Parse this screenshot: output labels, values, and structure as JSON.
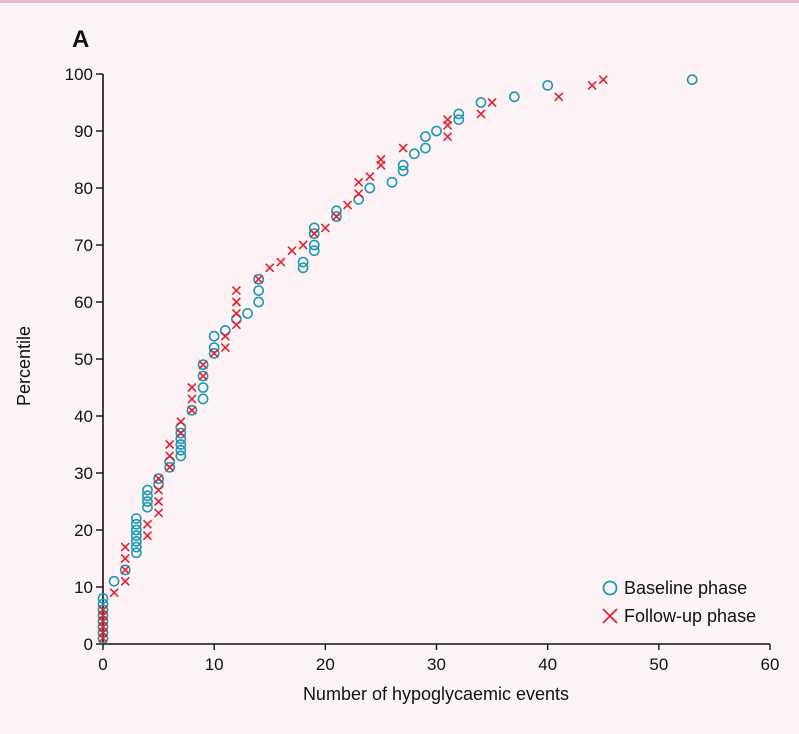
{
  "panel_label": "A",
  "colors": {
    "baseline": "#1a9bb5",
    "followup": "#e0242e",
    "axis": "#111111",
    "background": "#fdf2f5"
  },
  "chart_data": {
    "type": "scatter",
    "title": "",
    "xlabel": "Number of hypoglycaemic events",
    "ylabel": "Percentile",
    "xlim": [
      0,
      60
    ],
    "ylim": [
      0,
      100
    ],
    "xticks": [
      "0",
      "10",
      "20",
      "30",
      "40",
      "50",
      "60"
    ],
    "yticks": [
      "0",
      "10",
      "20",
      "30",
      "40",
      "50",
      "60",
      "70",
      "80",
      "90",
      "100"
    ],
    "grid": false,
    "legend_position": "bottom-right",
    "series": [
      {
        "name": "Baseline phase",
        "marker": "circle",
        "color": "#1a9bb5",
        "points": [
          [
            0,
            1
          ],
          [
            0,
            2
          ],
          [
            0,
            3
          ],
          [
            0,
            4
          ],
          [
            0,
            5
          ],
          [
            0,
            6
          ],
          [
            0,
            7
          ],
          [
            0,
            8
          ],
          [
            1,
            11
          ],
          [
            2,
            13
          ],
          [
            3,
            16
          ],
          [
            3,
            17
          ],
          [
            3,
            18
          ],
          [
            3,
            19
          ],
          [
            3,
            20
          ],
          [
            3,
            21
          ],
          [
            3,
            22
          ],
          [
            4,
            24
          ],
          [
            4,
            25
          ],
          [
            4,
            26
          ],
          [
            4,
            27
          ],
          [
            5,
            28
          ],
          [
            5,
            29
          ],
          [
            6,
            31
          ],
          [
            6,
            32
          ],
          [
            7,
            33
          ],
          [
            7,
            34
          ],
          [
            7,
            35
          ],
          [
            7,
            36
          ],
          [
            7,
            37
          ],
          [
            7,
            38
          ],
          [
            8,
            41
          ],
          [
            9,
            43
          ],
          [
            9,
            45
          ],
          [
            9,
            47
          ],
          [
            9,
            49
          ],
          [
            10,
            51
          ],
          [
            10,
            52
          ],
          [
            10,
            54
          ],
          [
            11,
            55
          ],
          [
            12,
            57
          ],
          [
            13,
            58
          ],
          [
            14,
            60
          ],
          [
            14,
            62
          ],
          [
            14,
            64
          ],
          [
            18,
            66
          ],
          [
            18,
            67
          ],
          [
            19,
            69
          ],
          [
            19,
            70
          ],
          [
            19,
            72
          ],
          [
            19,
            73
          ],
          [
            21,
            75
          ],
          [
            21,
            76
          ],
          [
            23,
            78
          ],
          [
            24,
            80
          ],
          [
            26,
            81
          ],
          [
            27,
            83
          ],
          [
            27,
            84
          ],
          [
            28,
            86
          ],
          [
            29,
            87
          ],
          [
            29,
            89
          ],
          [
            30,
            90
          ],
          [
            32,
            92
          ],
          [
            32,
            93
          ],
          [
            34,
            95
          ],
          [
            37,
            96
          ],
          [
            40,
            98
          ],
          [
            53,
            99
          ]
        ]
      },
      {
        "name": "Follow-up phase",
        "marker": "cross",
        "color": "#e0242e",
        "points": [
          [
            0,
            1
          ],
          [
            0,
            2
          ],
          [
            0,
            3
          ],
          [
            0,
            4
          ],
          [
            0,
            5
          ],
          [
            0,
            6
          ],
          [
            1,
            9
          ],
          [
            2,
            11
          ],
          [
            2,
            13
          ],
          [
            2,
            15
          ],
          [
            2,
            17
          ],
          [
            4,
            19
          ],
          [
            4,
            21
          ],
          [
            5,
            23
          ],
          [
            5,
            25
          ],
          [
            5,
            27
          ],
          [
            5,
            29
          ],
          [
            6,
            31
          ],
          [
            6,
            33
          ],
          [
            6,
            35
          ],
          [
            7,
            37
          ],
          [
            7,
            39
          ],
          [
            8,
            41
          ],
          [
            8,
            43
          ],
          [
            8,
            45
          ],
          [
            9,
            47
          ],
          [
            9,
            49
          ],
          [
            10,
            51
          ],
          [
            11,
            52
          ],
          [
            11,
            54
          ],
          [
            12,
            56
          ],
          [
            12,
            58
          ],
          [
            12,
            60
          ],
          [
            12,
            62
          ],
          [
            14,
            64
          ],
          [
            15,
            66
          ],
          [
            16,
            67
          ],
          [
            17,
            69
          ],
          [
            18,
            70
          ],
          [
            19,
            72
          ],
          [
            20,
            73
          ],
          [
            21,
            75
          ],
          [
            22,
            77
          ],
          [
            23,
            79
          ],
          [
            23,
            81
          ],
          [
            24,
            82
          ],
          [
            25,
            84
          ],
          [
            25,
            85
          ],
          [
            27,
            87
          ],
          [
            31,
            89
          ],
          [
            31,
            91
          ],
          [
            31,
            92
          ],
          [
            34,
            93
          ],
          [
            35,
            95
          ],
          [
            41,
            96
          ],
          [
            44,
            98
          ],
          [
            45,
            99
          ]
        ]
      }
    ]
  }
}
